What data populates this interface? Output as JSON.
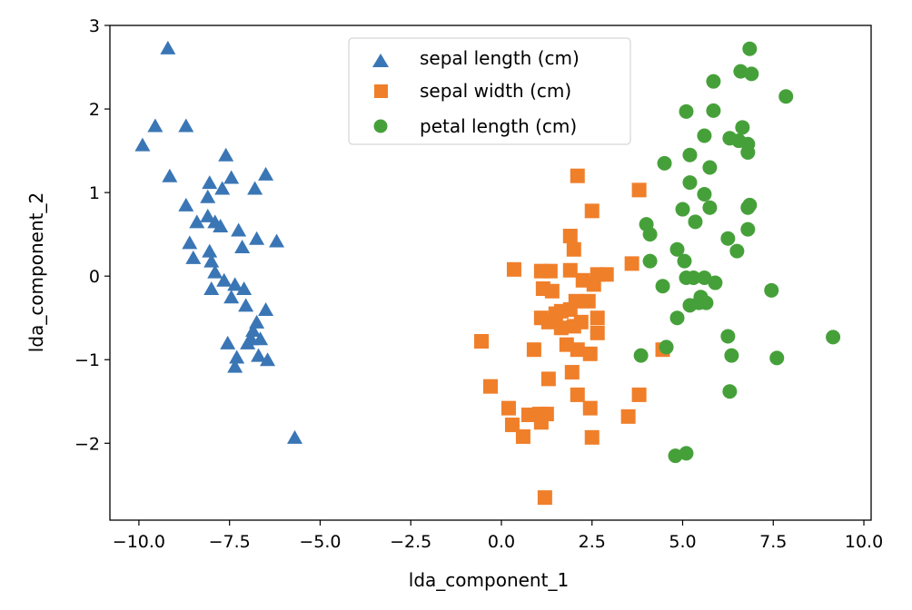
{
  "chart_data": {
    "type": "scatter",
    "title": "",
    "xlabel": "lda_component_1",
    "ylabel": "lda_component_2",
    "xlim": [
      -10.8,
      10.2
    ],
    "ylim": [
      -2.92,
      3.0
    ],
    "xticks": [
      -10.0,
      -7.5,
      -5.0,
      -2.5,
      0.0,
      2.5,
      5.0,
      7.5,
      10.0
    ],
    "xtick_labels": [
      "−10.0",
      "−7.5",
      "−5.0",
      "−2.5",
      "0.0",
      "2.5",
      "5.0",
      "7.5",
      "10.0"
    ],
    "yticks": [
      -2,
      -1,
      0,
      1,
      2,
      3
    ],
    "ytick_labels": [
      "−2",
      "−1",
      "0",
      "1",
      "2",
      "3"
    ],
    "grid": false,
    "legend_position": "top-center",
    "series": [
      {
        "name": "sepal length (cm)",
        "marker": "triangle",
        "color": "#3a76b5",
        "points": [
          [
            -9.2,
            2.73
          ],
          [
            -9.55,
            1.8
          ],
          [
            -8.7,
            1.8
          ],
          [
            -9.9,
            1.57
          ],
          [
            -9.15,
            1.2
          ],
          [
            -7.6,
            1.45
          ],
          [
            -7.45,
            1.18
          ],
          [
            -8.05,
            1.12
          ],
          [
            -7.7,
            1.05
          ],
          [
            -6.5,
            1.22
          ],
          [
            -6.8,
            1.05
          ],
          [
            -8.1,
            0.95
          ],
          [
            -8.7,
            0.85
          ],
          [
            -8.4,
            0.65
          ],
          [
            -8.1,
            0.72
          ],
          [
            -7.9,
            0.65
          ],
          [
            -7.75,
            0.6
          ],
          [
            -7.25,
            0.55
          ],
          [
            -8.6,
            0.4
          ],
          [
            -7.15,
            0.35
          ],
          [
            -6.75,
            0.45
          ],
          [
            -6.2,
            0.42
          ],
          [
            -8.05,
            0.3
          ],
          [
            -8.5,
            0.22
          ],
          [
            -8.0,
            0.18
          ],
          [
            -7.9,
            0.05
          ],
          [
            -7.65,
            -0.05
          ],
          [
            -7.35,
            -0.1
          ],
          [
            -8.0,
            -0.15
          ],
          [
            -7.1,
            -0.15
          ],
          [
            -7.45,
            -0.25
          ],
          [
            -7.05,
            -0.35
          ],
          [
            -6.5,
            -0.4
          ],
          [
            -6.75,
            -0.55
          ],
          [
            -6.85,
            -0.65
          ],
          [
            -6.9,
            -0.75
          ],
          [
            -6.65,
            -0.75
          ],
          [
            -7.55,
            -0.8
          ],
          [
            -7.0,
            -0.8
          ],
          [
            -6.7,
            -0.95
          ],
          [
            -6.45,
            -1.0
          ],
          [
            -7.3,
            -0.97
          ],
          [
            -7.35,
            -1.08
          ],
          [
            -5.7,
            -1.93
          ]
        ]
      },
      {
        "name": "sepal width (cm)",
        "marker": "square",
        "color": "#f07f2a",
        "points": [
          [
            2.1,
            1.2
          ],
          [
            3.8,
            1.03
          ],
          [
            2.5,
            0.78
          ],
          [
            1.9,
            0.48
          ],
          [
            2.0,
            0.32
          ],
          [
            3.6,
            0.15
          ],
          [
            0.35,
            0.08
          ],
          [
            1.1,
            0.06
          ],
          [
            1.35,
            0.06
          ],
          [
            1.9,
            0.07
          ],
          [
            2.9,
            0.02
          ],
          [
            2.65,
            0.02
          ],
          [
            2.25,
            -0.05
          ],
          [
            2.55,
            -0.1
          ],
          [
            1.15,
            -0.15
          ],
          [
            1.4,
            -0.18
          ],
          [
            2.05,
            -0.3
          ],
          [
            2.4,
            -0.3
          ],
          [
            1.9,
            -0.4
          ],
          [
            1.5,
            -0.45
          ],
          [
            1.65,
            -0.42
          ],
          [
            1.1,
            -0.5
          ],
          [
            2.65,
            -0.5
          ],
          [
            1.3,
            -0.55
          ],
          [
            2.2,
            -0.55
          ],
          [
            1.65,
            -0.62
          ],
          [
            2.0,
            -0.6
          ],
          [
            2.65,
            -0.68
          ],
          [
            -0.55,
            -0.78
          ],
          [
            1.8,
            -0.82
          ],
          [
            0.9,
            -0.88
          ],
          [
            2.1,
            -0.88
          ],
          [
            2.45,
            -0.93
          ],
          [
            4.45,
            -0.88
          ],
          [
            1.95,
            -1.15
          ],
          [
            1.3,
            -1.23
          ],
          [
            -0.3,
            -1.32
          ],
          [
            3.8,
            -1.42
          ],
          [
            2.1,
            -1.42
          ],
          [
            0.2,
            -1.58
          ],
          [
            2.45,
            -1.58
          ],
          [
            0.75,
            -1.66
          ],
          [
            1.05,
            -1.65
          ],
          [
            1.25,
            -1.65
          ],
          [
            3.5,
            -1.68
          ],
          [
            1.1,
            -1.75
          ],
          [
            0.3,
            -1.78
          ],
          [
            0.6,
            -1.92
          ],
          [
            2.5,
            -1.93
          ],
          [
            1.2,
            -2.65
          ]
        ]
      },
      {
        "name": "petal length (cm)",
        "marker": "circle",
        "color": "#46a03a",
        "points": [
          [
            6.85,
            2.72
          ],
          [
            6.6,
            2.45
          ],
          [
            6.9,
            2.42
          ],
          [
            5.85,
            2.33
          ],
          [
            7.85,
            2.15
          ],
          [
            5.1,
            1.97
          ],
          [
            5.85,
            1.98
          ],
          [
            6.65,
            1.78
          ],
          [
            5.6,
            1.68
          ],
          [
            6.3,
            1.65
          ],
          [
            6.55,
            1.62
          ],
          [
            6.8,
            1.58
          ],
          [
            5.2,
            1.45
          ],
          [
            6.8,
            1.48
          ],
          [
            4.5,
            1.35
          ],
          [
            5.75,
            1.3
          ],
          [
            5.2,
            1.12
          ],
          [
            5.6,
            0.98
          ],
          [
            5.0,
            0.8
          ],
          [
            5.75,
            0.82
          ],
          [
            6.85,
            0.85
          ],
          [
            6.8,
            0.82
          ],
          [
            5.35,
            0.65
          ],
          [
            4.0,
            0.62
          ],
          [
            4.1,
            0.5
          ],
          [
            6.8,
            0.56
          ],
          [
            6.25,
            0.45
          ],
          [
            6.5,
            0.3
          ],
          [
            4.85,
            0.32
          ],
          [
            5.05,
            0.18
          ],
          [
            4.1,
            0.18
          ],
          [
            5.1,
            -0.02
          ],
          [
            5.3,
            -0.02
          ],
          [
            5.6,
            -0.02
          ],
          [
            5.9,
            -0.08
          ],
          [
            4.45,
            -0.12
          ],
          [
            5.5,
            -0.25
          ],
          [
            7.45,
            -0.17
          ],
          [
            5.45,
            -0.32
          ],
          [
            5.65,
            -0.32
          ],
          [
            5.2,
            -0.35
          ],
          [
            4.85,
            -0.5
          ],
          [
            6.25,
            -0.72
          ],
          [
            9.15,
            -0.73
          ],
          [
            4.55,
            -0.85
          ],
          [
            3.85,
            -0.95
          ],
          [
            6.35,
            -0.95
          ],
          [
            7.6,
            -0.98
          ],
          [
            6.3,
            -1.38
          ],
          [
            5.1,
            -2.12
          ],
          [
            4.8,
            -2.15
          ]
        ]
      }
    ]
  }
}
